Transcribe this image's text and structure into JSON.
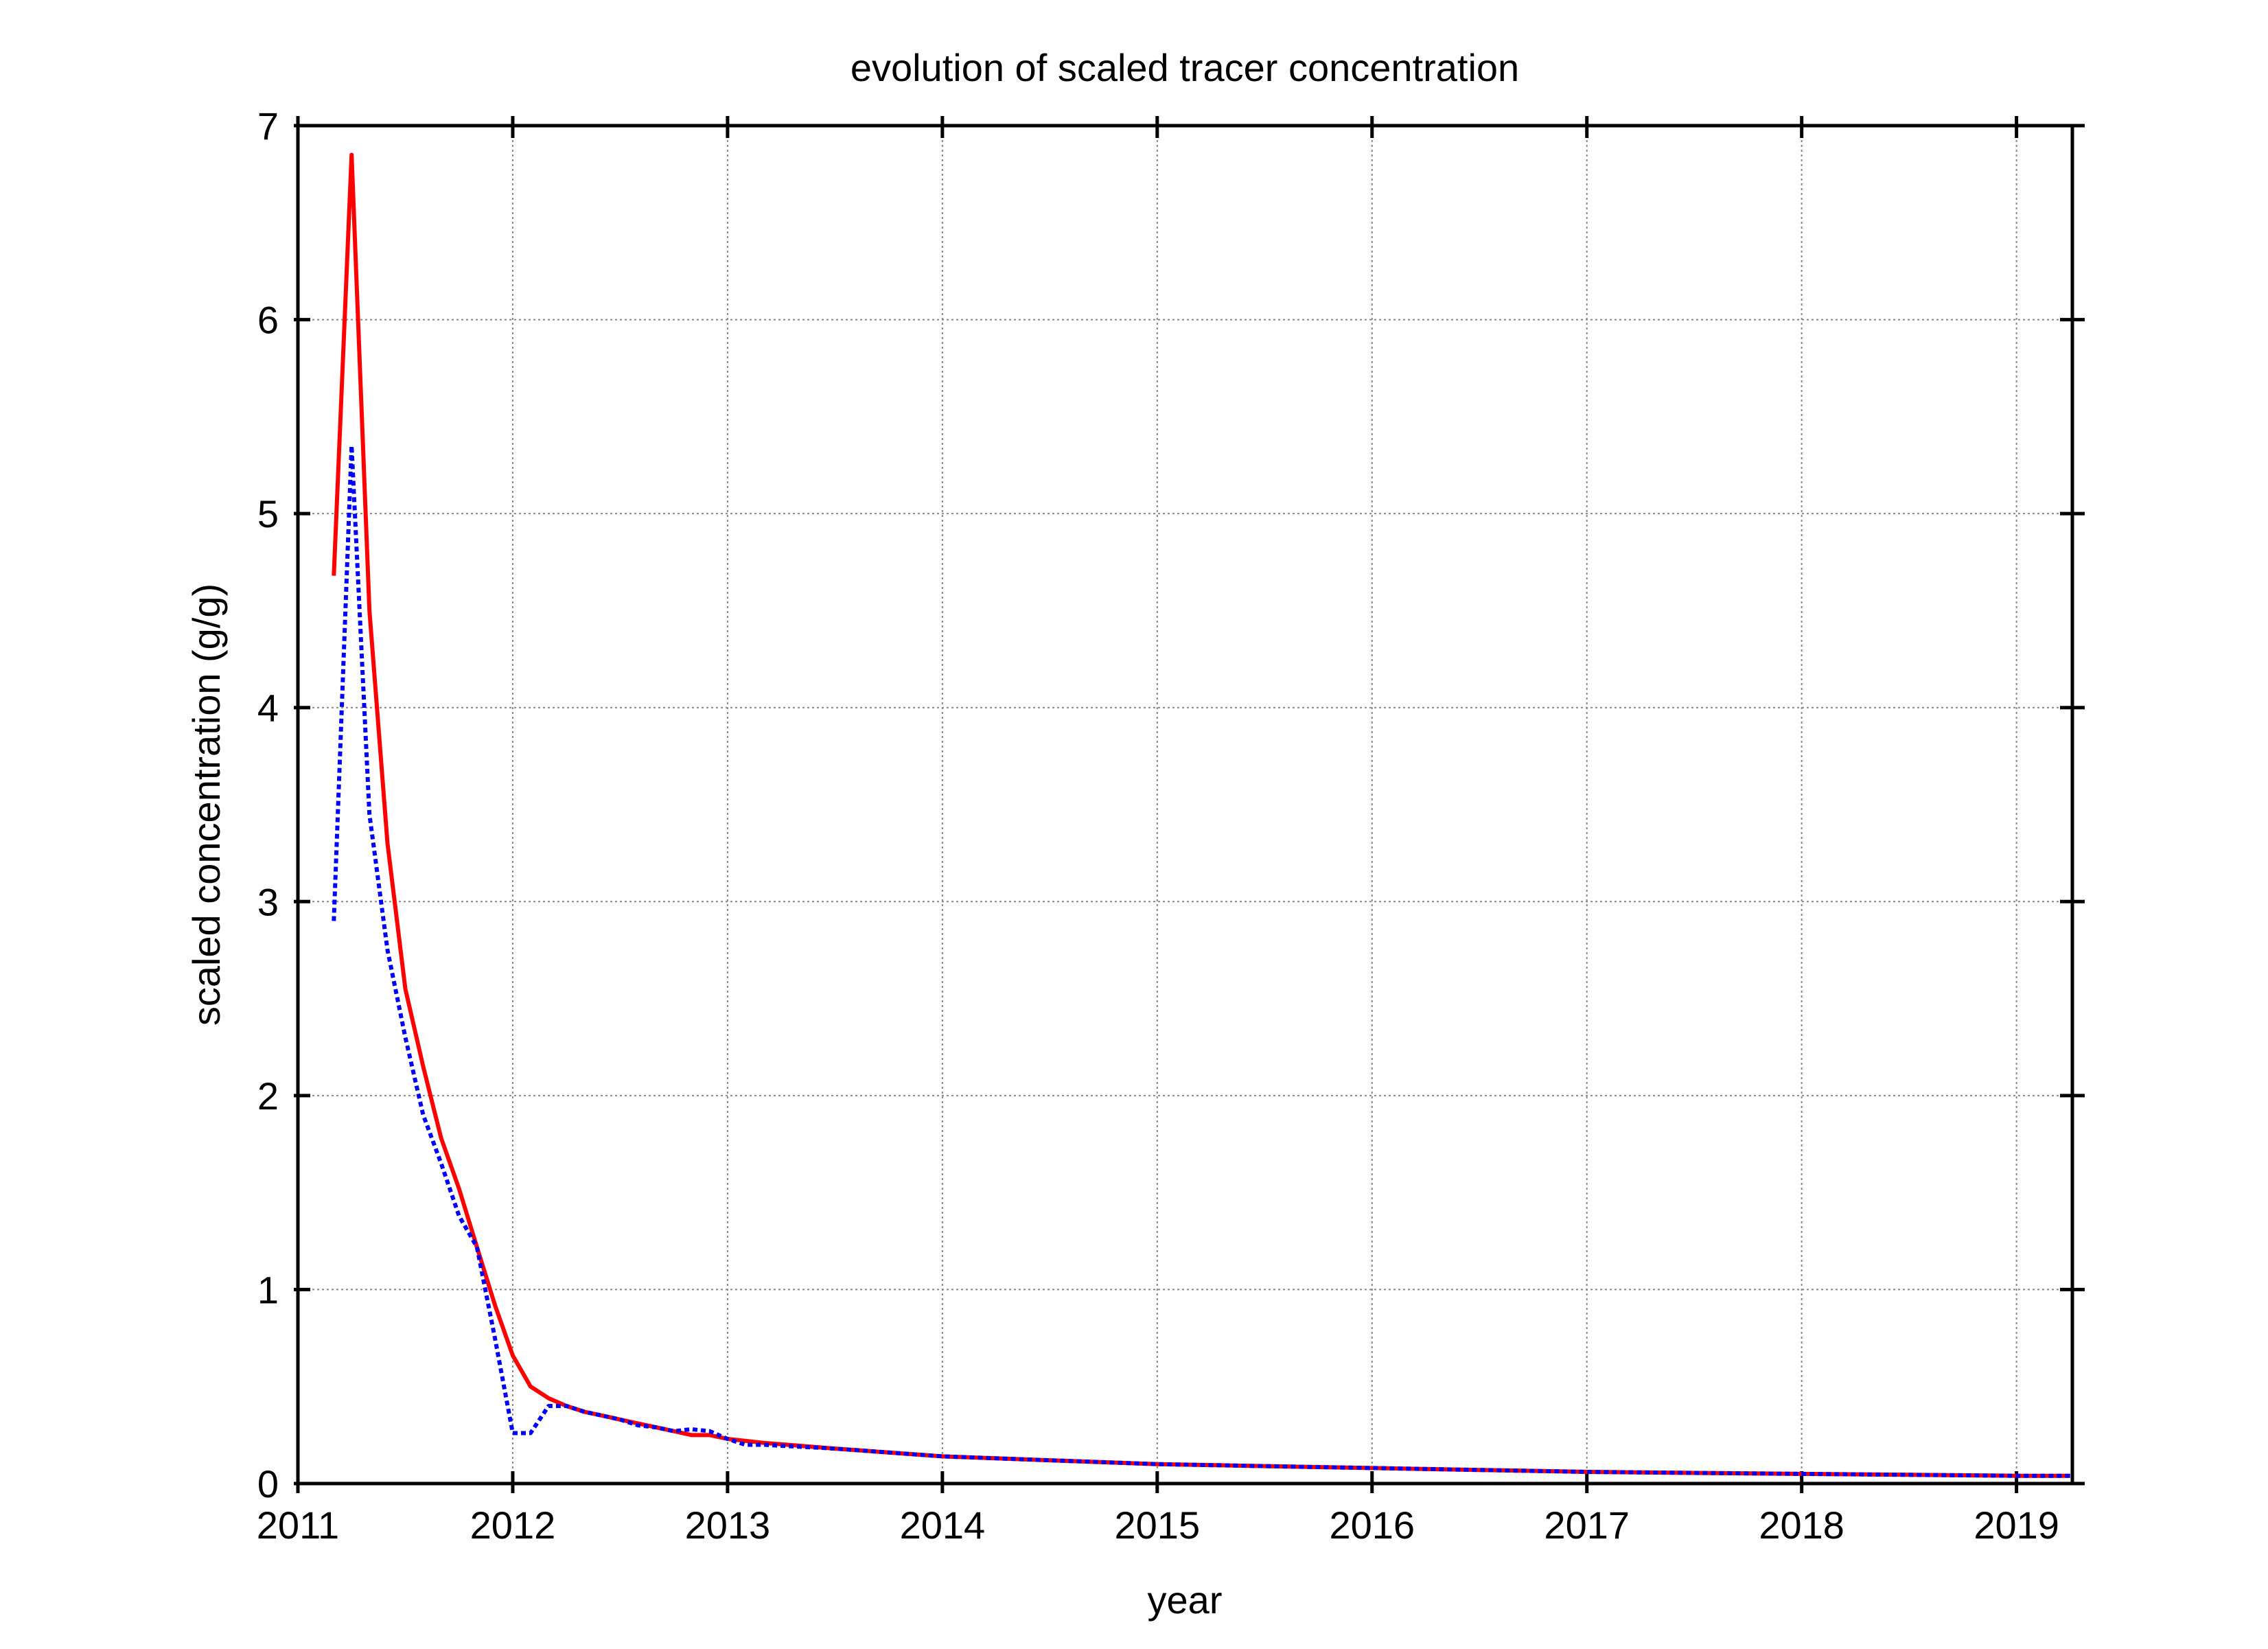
{
  "chart_data": {
    "type": "line",
    "title": "evolution of  scaled tracer concentration",
    "xlabel": "year",
    "ylabel": "scaled concentration (g/g)",
    "x": [
      2011.167,
      2011.25,
      2011.333,
      2011.417,
      2011.5,
      2011.583,
      2011.667,
      2011.75,
      2011.833,
      2011.917,
      2012.0,
      2012.083,
      2012.167,
      2012.25,
      2012.333,
      2012.417,
      2012.5,
      2012.583,
      2012.667,
      2012.75,
      2012.833,
      2012.917,
      2013.0,
      2013.083,
      2013.167,
      2013.5,
      2014.0,
      2014.5,
      2015.0,
      2015.5,
      2016.0,
      2016.5,
      2017.0,
      2017.5,
      2018.0,
      2018.5,
      2019.0,
      2019.25
    ],
    "series": [
      {
        "name": "red",
        "color": "#ff0000",
        "dash": false,
        "values": [
          4.68,
          6.85,
          4.5,
          3.3,
          2.55,
          2.15,
          1.78,
          1.52,
          1.22,
          0.92,
          0.66,
          0.5,
          0.44,
          0.4,
          0.37,
          0.35,
          0.33,
          0.31,
          0.29,
          0.27,
          0.25,
          0.25,
          0.23,
          0.22,
          0.21,
          0.18,
          0.14,
          0.12,
          0.1,
          0.09,
          0.08,
          0.07,
          0.06,
          0.055,
          0.05,
          0.045,
          0.04,
          0.04
        ]
      },
      {
        "name": "blue",
        "color": "#0000ff",
        "dash": true,
        "values": [
          2.9,
          5.35,
          3.45,
          2.75,
          2.3,
          1.9,
          1.65,
          1.38,
          1.22,
          0.75,
          0.26,
          0.26,
          0.4,
          0.4,
          0.37,
          0.35,
          0.33,
          0.3,
          0.29,
          0.27,
          0.28,
          0.27,
          0.23,
          0.2,
          0.2,
          0.18,
          0.14,
          0.12,
          0.1,
          0.09,
          0.08,
          0.07,
          0.06,
          0.055,
          0.05,
          0.045,
          0.04,
          0.04
        ]
      }
    ],
    "xlim": [
      2011,
      2019.26
    ],
    "xticks": [
      2011,
      2012,
      2013,
      2014,
      2015,
      2016,
      2017,
      2018,
      2019
    ],
    "ylim": [
      0,
      7
    ],
    "yticks": [
      0,
      1,
      2,
      3,
      4,
      5,
      6,
      7
    ],
    "grid": true
  }
}
